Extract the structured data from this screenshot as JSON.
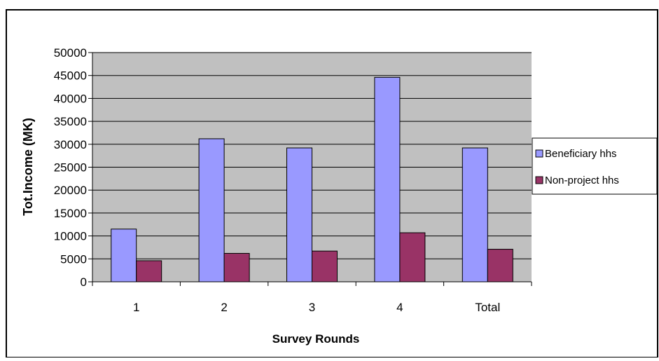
{
  "chart_data": {
    "type": "bar",
    "title": "",
    "xlabel": "Survey Rounds",
    "ylabel": "Tot.Income (MK)",
    "categories": [
      "1",
      "2",
      "3",
      "4",
      "Total"
    ],
    "ylim": [
      0,
      50000
    ],
    "yticks": [
      0,
      5000,
      10000,
      15000,
      20000,
      25000,
      30000,
      35000,
      40000,
      45000,
      50000
    ],
    "grid": true,
    "legend_position": "right",
    "series": [
      {
        "name": "Beneficiary hhs",
        "color": "#9999ff",
        "values": [
          11500,
          31200,
          29200,
          44600,
          29200
        ]
      },
      {
        "name": "Non-project hhs",
        "color": "#993366",
        "values": [
          4600,
          6200,
          6700,
          10700,
          7100
        ]
      }
    ],
    "plot_background": "#c0c0c0"
  }
}
